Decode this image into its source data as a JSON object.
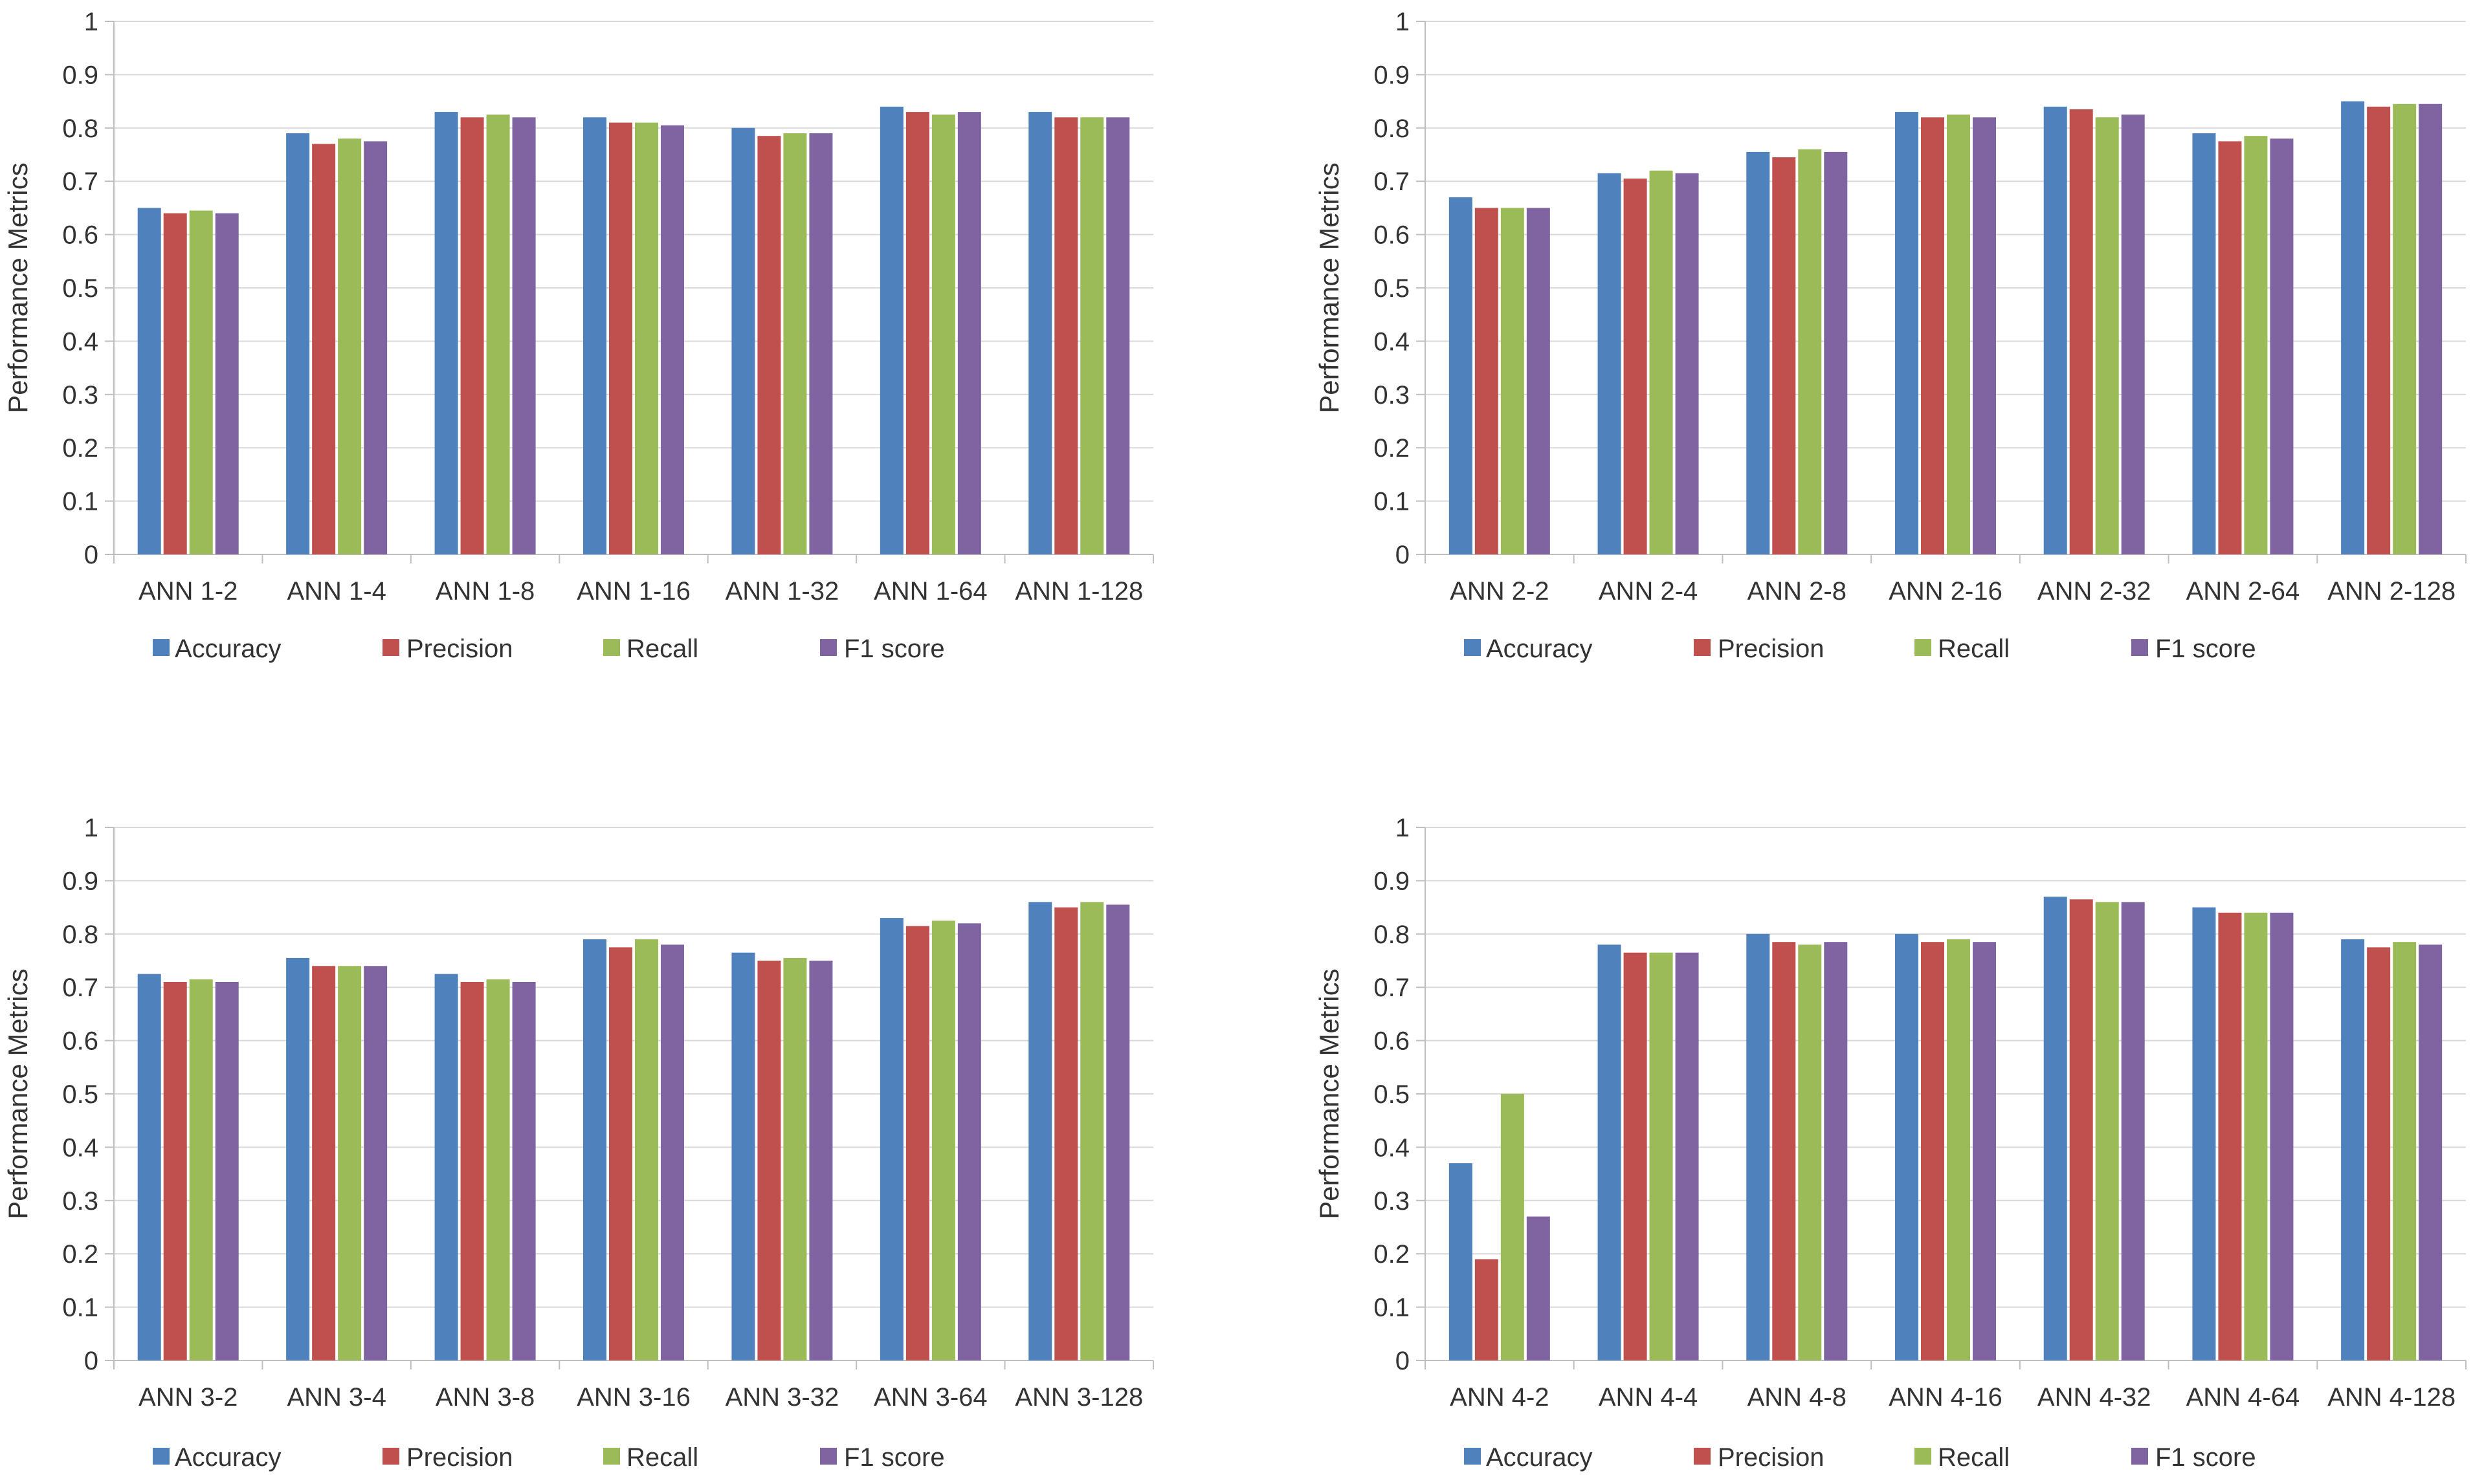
{
  "colors": {
    "accuracy": "#4F81BD",
    "precision": "#C0504D",
    "recall": "#9BBB59",
    "f1": "#8064A2",
    "grid": "#D9D9D9",
    "axis": "#BFBFBF",
    "text": "#333333"
  },
  "chart_data": [
    {
      "type": "bar",
      "title": "",
      "ylabel": "Performance Metrics",
      "xlabel": "",
      "ylim": [
        0,
        1
      ],
      "yticks": [
        "0",
        "0.1",
        "0.2",
        "0.3",
        "0.4",
        "0.5",
        "0.6",
        "0.7",
        "0.8",
        "0.9",
        "1"
      ],
      "grid": true,
      "legend_position": "bottom",
      "categories": [
        "ANN 1-2",
        "ANN 1-4",
        "ANN 1-8",
        "ANN 1-16",
        "ANN 1-32",
        "ANN 1-64",
        "ANN 1-128"
      ],
      "series": [
        {
          "name": "Accuracy",
          "values": [
            0.65,
            0.79,
            0.83,
            0.82,
            0.8,
            0.84,
            0.83
          ]
        },
        {
          "name": "Precision",
          "values": [
            0.64,
            0.77,
            0.82,
            0.81,
            0.785,
            0.83,
            0.82
          ]
        },
        {
          "name": "Recall",
          "values": [
            0.645,
            0.78,
            0.825,
            0.81,
            0.79,
            0.825,
            0.82
          ]
        },
        {
          "name": "F1 score",
          "values": [
            0.64,
            0.775,
            0.82,
            0.805,
            0.79,
            0.83,
            0.82
          ]
        }
      ]
    },
    {
      "type": "bar",
      "title": "",
      "ylabel": "Performance Metrics",
      "xlabel": "",
      "ylim": [
        0,
        1
      ],
      "yticks": [
        "0",
        "0.1",
        "0.2",
        "0.3",
        "0.4",
        "0.5",
        "0.6",
        "0.7",
        "0.8",
        "0.9",
        "1"
      ],
      "grid": true,
      "legend_position": "bottom",
      "categories": [
        "ANN 2-2",
        "ANN 2-4",
        "ANN 2-8",
        "ANN 2-16",
        "ANN 2-32",
        "ANN 2-64",
        "ANN 2-128"
      ],
      "series": [
        {
          "name": "Accuracy",
          "values": [
            0.67,
            0.715,
            0.755,
            0.83,
            0.84,
            0.79,
            0.85
          ]
        },
        {
          "name": "Precision",
          "values": [
            0.65,
            0.705,
            0.745,
            0.82,
            0.835,
            0.775,
            0.84
          ]
        },
        {
          "name": "Recall",
          "values": [
            0.65,
            0.72,
            0.76,
            0.825,
            0.82,
            0.785,
            0.845
          ]
        },
        {
          "name": "F1 score",
          "values": [
            0.65,
            0.715,
            0.755,
            0.82,
            0.825,
            0.78,
            0.845
          ]
        }
      ]
    },
    {
      "type": "bar",
      "title": "",
      "ylabel": "Performance Metrics",
      "xlabel": "",
      "ylim": [
        0,
        1
      ],
      "yticks": [
        "0",
        "0.1",
        "0.2",
        "0.3",
        "0.4",
        "0.5",
        "0.6",
        "0.7",
        "0.8",
        "0.9",
        "1"
      ],
      "grid": true,
      "legend_position": "bottom",
      "categories": [
        "ANN 3-2",
        "ANN 3-4",
        "ANN 3-8",
        "ANN 3-16",
        "ANN 3-32",
        "ANN 3-64",
        "ANN 3-128"
      ],
      "series": [
        {
          "name": "Accuracy",
          "values": [
            0.725,
            0.755,
            0.725,
            0.79,
            0.765,
            0.83,
            0.86
          ]
        },
        {
          "name": "Precision",
          "values": [
            0.71,
            0.74,
            0.71,
            0.775,
            0.75,
            0.815,
            0.85
          ]
        },
        {
          "name": "Recall",
          "values": [
            0.715,
            0.74,
            0.715,
            0.79,
            0.755,
            0.825,
            0.86
          ]
        },
        {
          "name": "F1 score",
          "values": [
            0.71,
            0.74,
            0.71,
            0.78,
            0.75,
            0.82,
            0.855
          ]
        }
      ]
    },
    {
      "type": "bar",
      "title": "",
      "ylabel": "Performance Metrics",
      "xlabel": "",
      "ylim": [
        0,
        1
      ],
      "yticks": [
        "0",
        "0.1",
        "0.2",
        "0.3",
        "0.4",
        "0.5",
        "0.6",
        "0.7",
        "0.8",
        "0.9",
        "1"
      ],
      "grid": true,
      "legend_position": "bottom",
      "categories": [
        "ANN 4-2",
        "ANN 4-4",
        "ANN 4-8",
        "ANN 4-16",
        "ANN 4-32",
        "ANN 4-64",
        "ANN 4-128"
      ],
      "series": [
        {
          "name": "Accuracy",
          "values": [
            0.37,
            0.78,
            0.8,
            0.8,
            0.87,
            0.85,
            0.79
          ]
        },
        {
          "name": "Precision",
          "values": [
            0.19,
            0.765,
            0.785,
            0.785,
            0.865,
            0.84,
            0.775
          ]
        },
        {
          "name": "Recall",
          "values": [
            0.5,
            0.765,
            0.78,
            0.79,
            0.86,
            0.84,
            0.785
          ]
        },
        {
          "name": "F1 score",
          "values": [
            0.27,
            0.765,
            0.785,
            0.785,
            0.86,
            0.84,
            0.78
          ]
        }
      ]
    }
  ]
}
